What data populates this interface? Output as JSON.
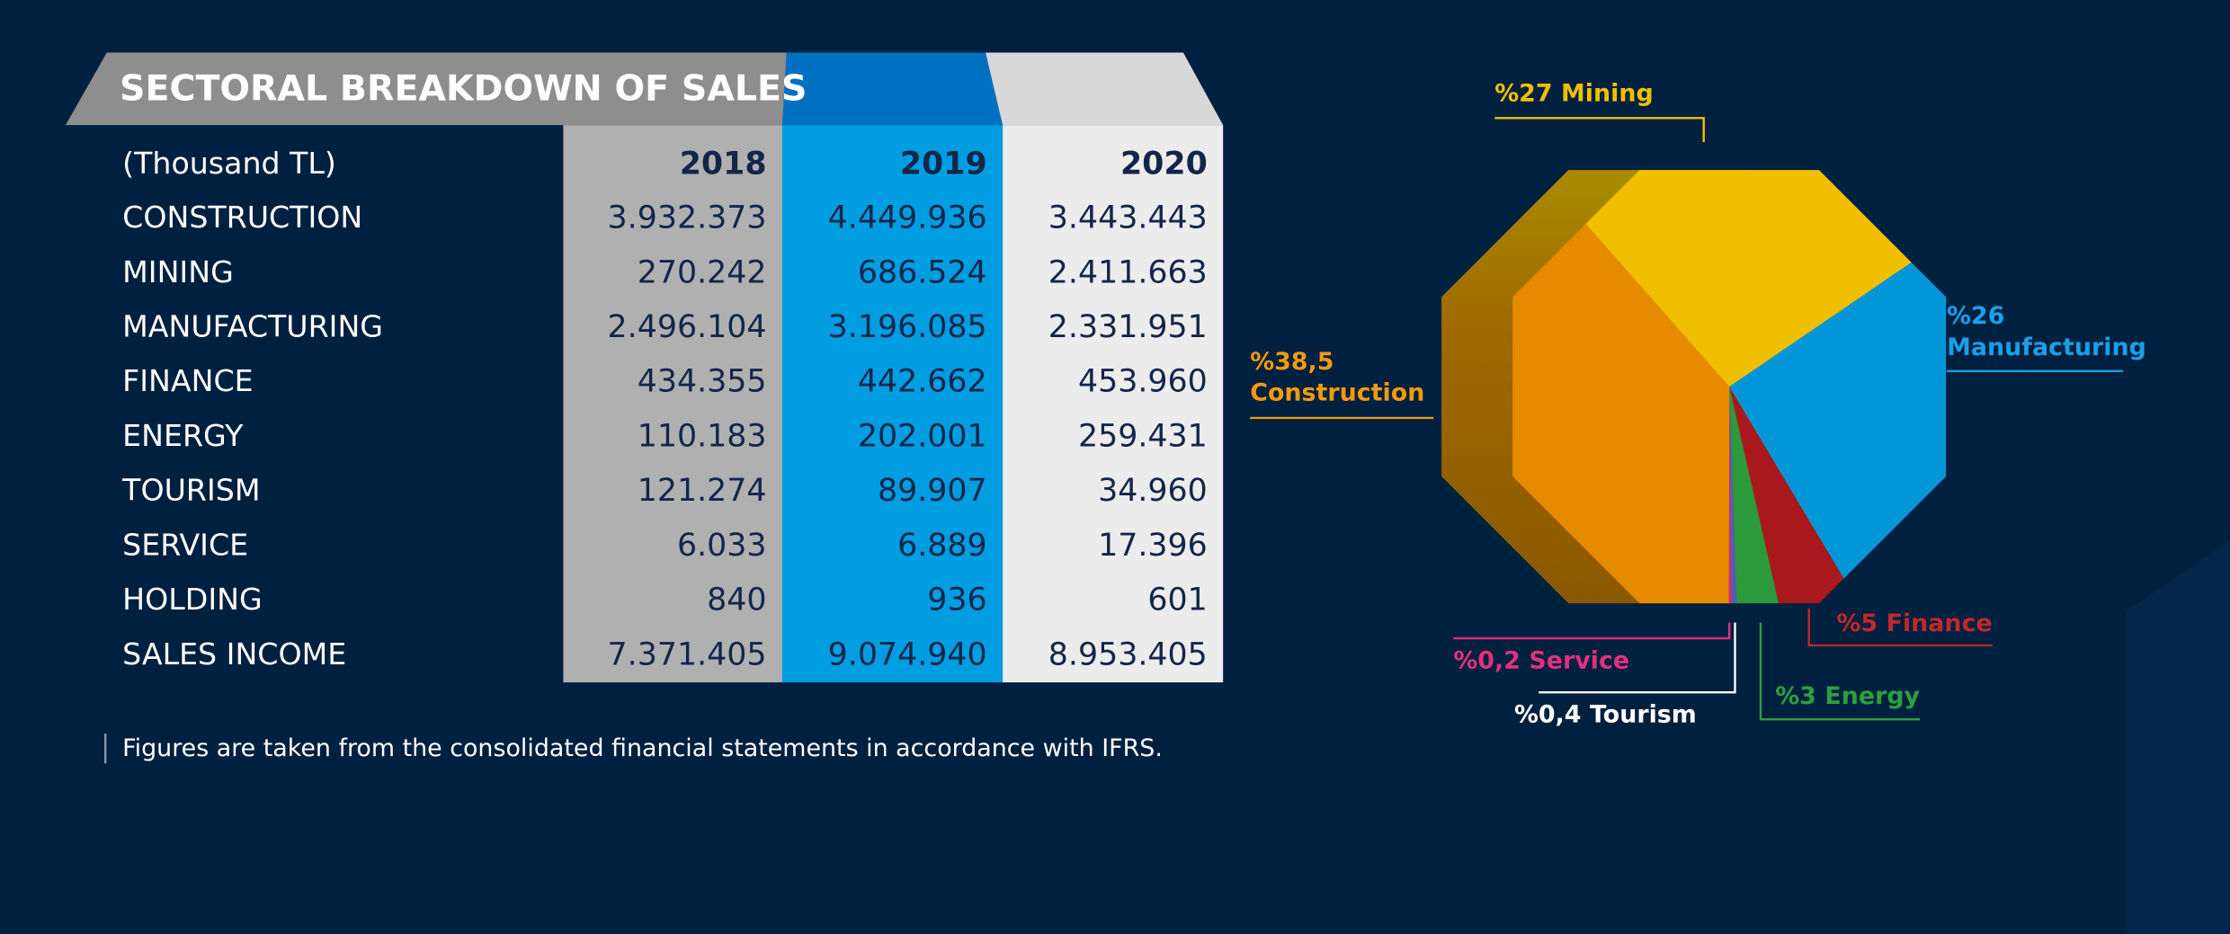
{
  "header": {
    "title": "SECTORAL BREAKDOWN OF SALES"
  },
  "table": {
    "columns": [
      "(Thousand TL)",
      "2018",
      "2019",
      "2020"
    ],
    "rows": [
      [
        "CONSTRUCTION",
        "3.932.373",
        "4.449.936",
        "3.443.443"
      ],
      [
        "MINING",
        "270.242",
        "686.524",
        "2.411.663"
      ],
      [
        "MANUFACTURING",
        "2.496.104",
        "3.196.085",
        "2.331.951"
      ],
      [
        "FINANCE",
        "434.355",
        "442.662",
        "453.960"
      ],
      [
        "ENERGY",
        "110.183",
        "202.001",
        "259.431"
      ],
      [
        "TOURISM",
        "121.274",
        "89.907",
        "34.960"
      ],
      [
        "SERVICE",
        "6.033",
        "6.889",
        "17.396"
      ],
      [
        "HOLDING",
        "840",
        "936",
        "601"
      ],
      [
        "SALES INCOME",
        "7.371.405",
        "9.074.940",
        "8.953.405"
      ]
    ]
  },
  "footnote": "Figures are taken from the consolidated financial statements in accordance with IFRS.",
  "chart_data": {
    "type": "pie",
    "categories": [
      "Mining",
      "Manufacturing",
      "Finance",
      "Energy",
      "Tourism",
      "Service",
      "Construction"
    ],
    "values": [
      27,
      26,
      5,
      3,
      0.4,
      0.2,
      38.5
    ],
    "value_labels": [
      "%27",
      "%26",
      "%5",
      "%3",
      "%0,4",
      "%0,2",
      "%38,5"
    ],
    "colors": [
      "#f0c000",
      "#0096d8",
      "#a8181c",
      "#2a9a3a",
      "#5060b0",
      "#d62a7a",
      "#e68a00"
    ],
    "label_colors": [
      "#f0c000",
      "#1aa0e8",
      "#c0282c",
      "#2aa040",
      "#ffffff",
      "#e0307f",
      "#f09a10"
    ]
  }
}
